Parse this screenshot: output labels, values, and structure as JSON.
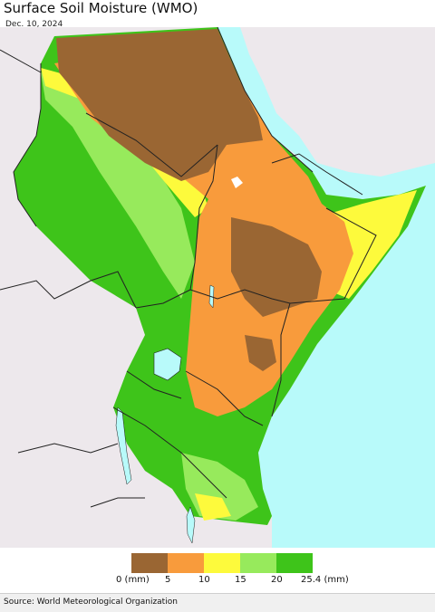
{
  "title": "Surface Soil Moisture (WMO)",
  "date": "Dec. 10, 2024",
  "source": "Source: World Meteorological Organization",
  "legend": {
    "colors": [
      "#9a6633",
      "#f89b3c",
      "#fdfa3c",
      "#97ea5c",
      "#3ec41a"
    ],
    "labels": [
      "0 (mm)",
      "5",
      "10",
      "15",
      "20",
      "25.4 (mm)"
    ]
  },
  "map_colors": {
    "land_outside": "#ede8ec",
    "ocean": "#b8fafa",
    "lake": "#b8fafa",
    "border": "#222222",
    "admin_border": "#666666"
  }
}
